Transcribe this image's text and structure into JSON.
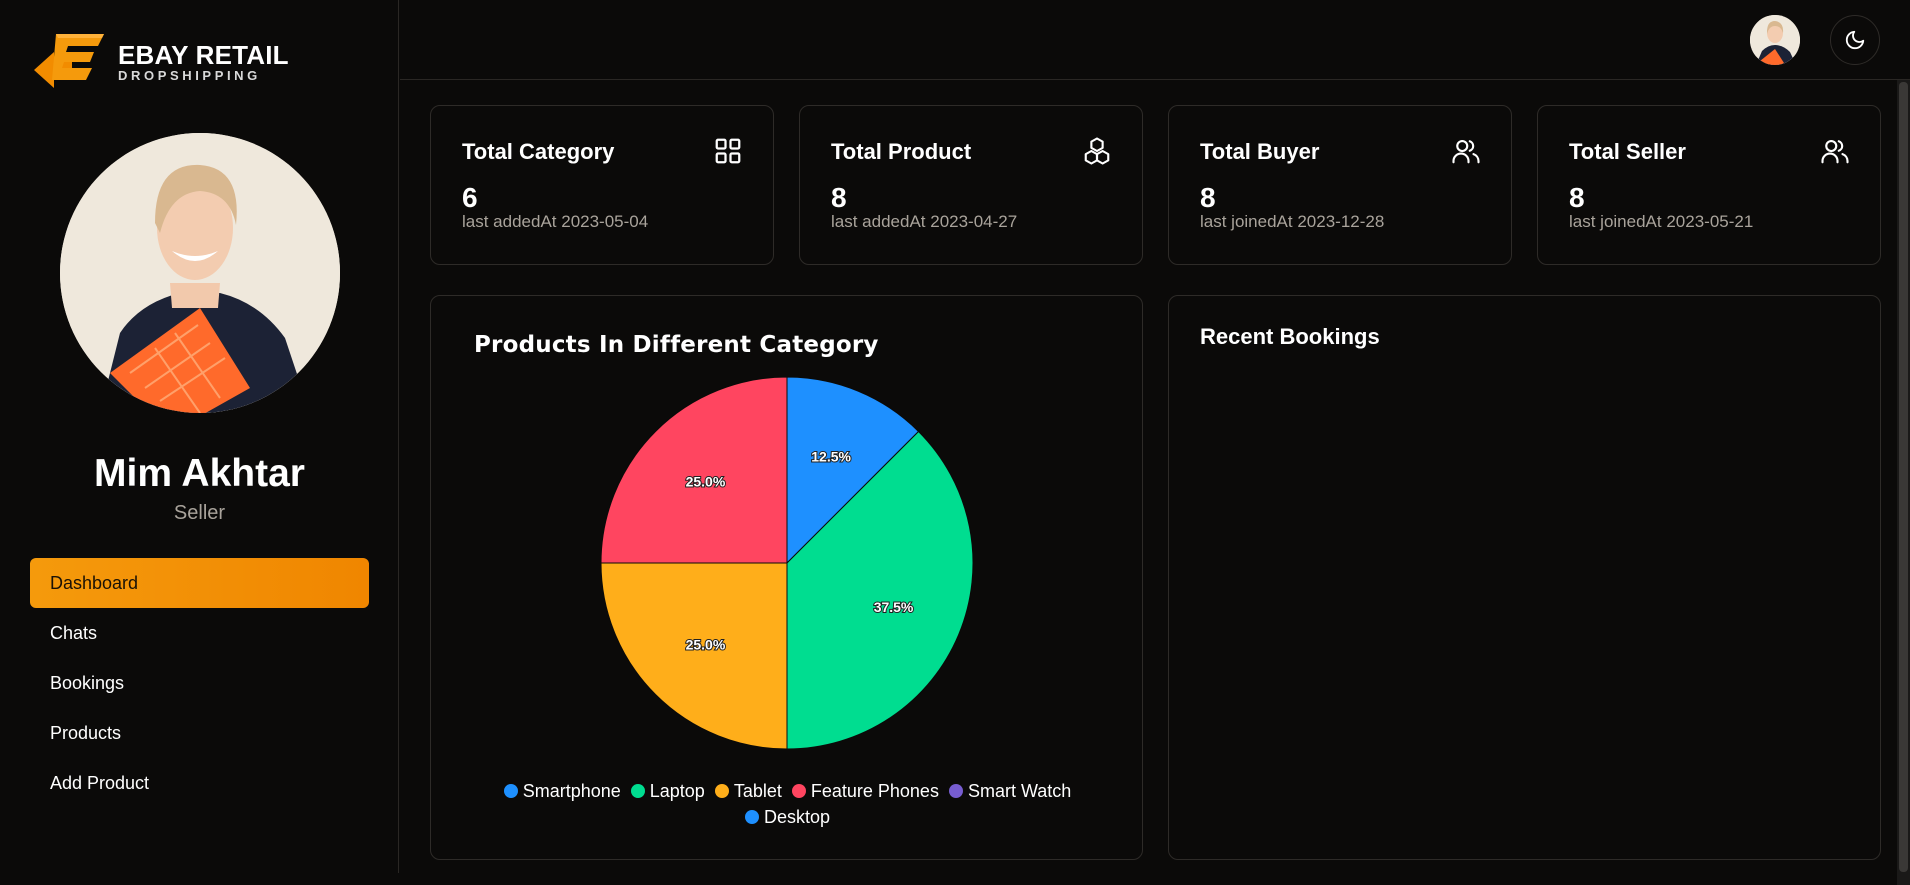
{
  "brand": {
    "title": "EBAY RETAIL",
    "subtitle": "DROPSHIPPING"
  },
  "profile": {
    "name": "Mim Akhtar",
    "role": "Seller"
  },
  "nav": {
    "items": [
      {
        "label": "Dashboard",
        "active": true
      },
      {
        "label": "Chats"
      },
      {
        "label": "Bookings"
      },
      {
        "label": "Products"
      },
      {
        "label": "Add Product"
      }
    ]
  },
  "stats": [
    {
      "title": "Total Category",
      "value": "6",
      "sub": "last addedAt 2023-05-04",
      "icon": "grid-icon"
    },
    {
      "title": "Total Product",
      "value": "8",
      "sub": "last addedAt 2023-04-27",
      "icon": "boxes-icon"
    },
    {
      "title": "Total Buyer",
      "value": "8",
      "sub": "last joinedAt 2023-12-28",
      "icon": "users-icon"
    },
    {
      "title": "Total Seller",
      "value": "8",
      "sub": "last joinedAt 2023-05-21",
      "icon": "users-icon"
    }
  ],
  "bookings": {
    "title": "Recent Bookings"
  },
  "colors": {
    "accent": "#f28c00",
    "smartphone": "#1e90ff",
    "laptop": "#00dd90",
    "tablet": "#ffae1a",
    "feature_phones": "#ff4560",
    "smart_watch": "#775dd0",
    "desktop": "#1e90ff"
  },
  "chart_data": {
    "type": "pie",
    "title": "Products In Different Category",
    "categories": [
      "Smartphone",
      "Laptop",
      "Tablet",
      "Feature Phones",
      "Smart Watch",
      "Desktop"
    ],
    "values": [
      1,
      3,
      2,
      2,
      0,
      0
    ],
    "percent_labels": [
      "12.5%",
      "37.5%",
      "25.0%",
      "25.0%",
      "",
      ""
    ],
    "colors": [
      "#1e90ff",
      "#00dd90",
      "#ffae1a",
      "#ff4560",
      "#775dd0",
      "#1e90ff"
    ],
    "legend": "bottom"
  }
}
